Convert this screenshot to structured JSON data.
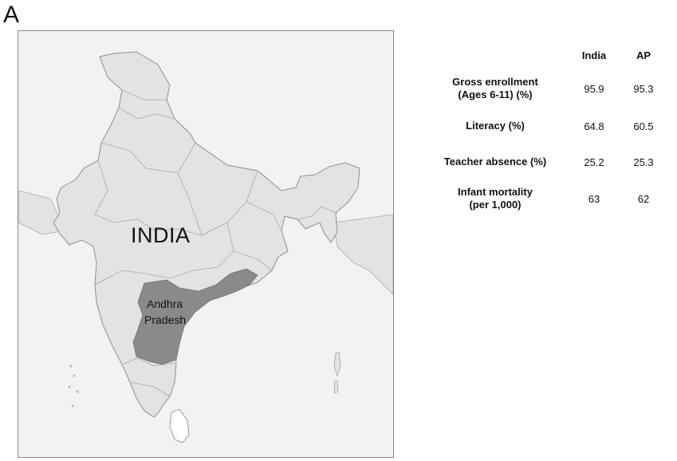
{
  "figure": {
    "panel_letter": "A"
  },
  "map": {
    "country_label": "INDIA",
    "state_label_line1": "Andhra",
    "state_label_line2": "Pradesh",
    "colors": {
      "sea": "#f2f2f2",
      "country": "#e3e3e3",
      "highlight_state": "#8a8a8a",
      "border": "#a7a7a7",
      "frame": "#8a8a8a"
    }
  },
  "table": {
    "columns": [
      "",
      "India",
      "AP"
    ],
    "rows": [
      {
        "label": [
          "Gross enrollment",
          "(Ages 6-11) (%)"
        ],
        "india": "95.9",
        "ap": "95.3"
      },
      {
        "label": [
          "Literacy (%)"
        ],
        "india": "64.8",
        "ap": "60.5"
      },
      {
        "label": [
          "Teacher absence (%)"
        ],
        "india": "25.2",
        "ap": "25.3"
      },
      {
        "label": [
          "Infant mortality",
          "(per 1,000)"
        ],
        "india": "63",
        "ap": "62"
      }
    ]
  }
}
